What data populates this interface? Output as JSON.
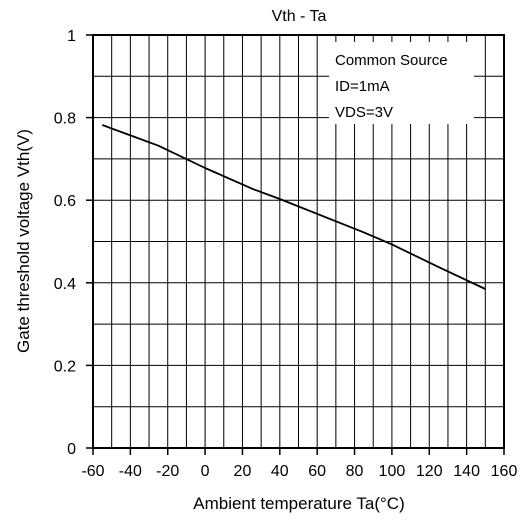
{
  "chart_data": {
    "type": "line",
    "title": "Vth - Ta",
    "xlabel": "Ambient temperature Ta(°C)",
    "ylabel": "Gate threshold voltage Vth(V)",
    "xlim": [
      -60,
      160
    ],
    "ylim": [
      0,
      1
    ],
    "x_ticks": [
      -60,
      -40,
      -20,
      0,
      20,
      40,
      60,
      80,
      100,
      120,
      140,
      160
    ],
    "y_ticks": [
      0,
      0.2,
      0.4,
      0.6,
      0.8,
      1
    ],
    "x_tick_labels": [
      "-60",
      "-40",
      "-20",
      "0",
      "20",
      "40",
      "60",
      "80",
      "100",
      "120",
      "140",
      "160"
    ],
    "y_tick_labels": [
      "0",
      "0.2",
      "0.4",
      "0.6",
      "0.8",
      "1"
    ],
    "grid": true,
    "grid_x_step": 10,
    "grid_y_step": 0.1,
    "annotations": [
      "Common Source",
      "ID=1mA",
      "VDS=3V"
    ],
    "series": [
      {
        "x": [
          -55,
          -25,
          0,
          25,
          40,
          85,
          100,
          125,
          150
        ],
        "y": [
          0.782,
          0.732,
          0.678,
          0.628,
          0.603,
          0.522,
          0.493,
          0.438,
          0.385
        ]
      }
    ],
    "line_color": "#000000"
  }
}
